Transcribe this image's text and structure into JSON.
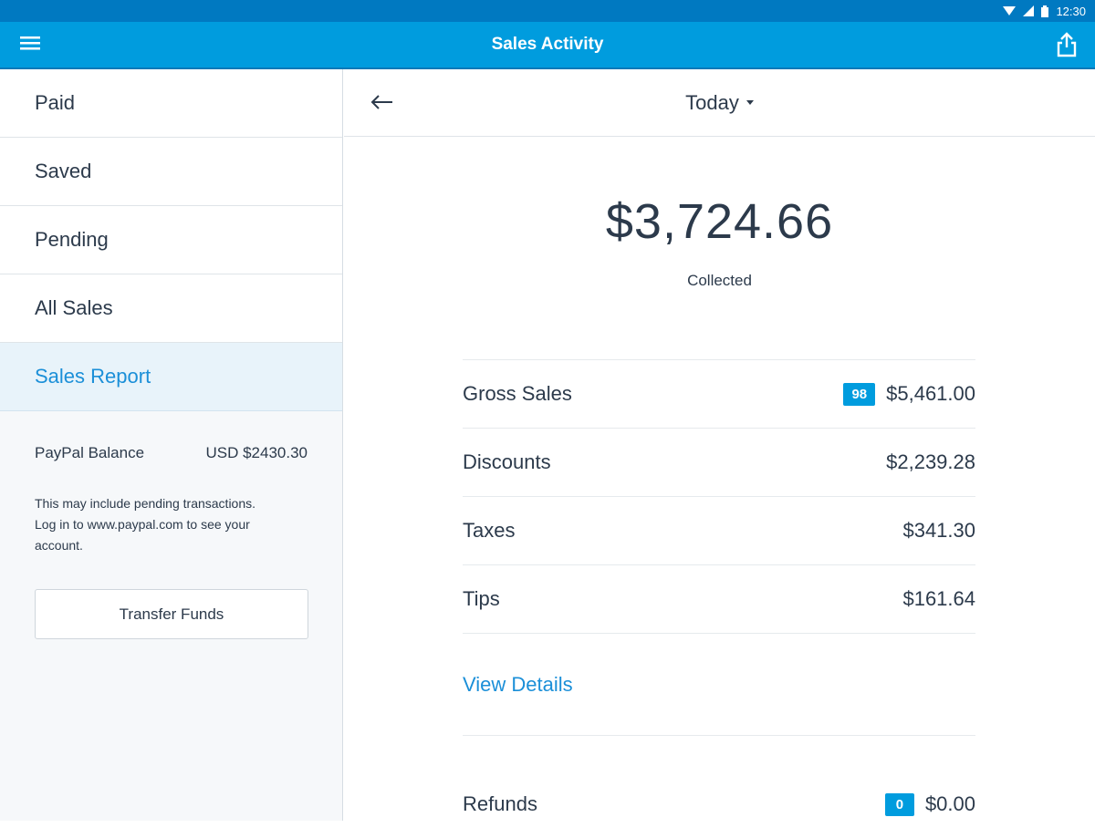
{
  "status_bar": {
    "time": "12:30"
  },
  "app_bar": {
    "title": "Sales Activity"
  },
  "sidebar": {
    "items": [
      {
        "label": "Paid"
      },
      {
        "label": "Saved"
      },
      {
        "label": "Pending"
      },
      {
        "label": "All Sales"
      },
      {
        "label": "Sales Report",
        "active": true
      }
    ],
    "balance_label": "PayPal Balance",
    "balance_value": "USD $2430.30",
    "note": "This may include pending transactions. Log in to www.paypal.com to see your account.",
    "transfer_button": "Transfer Funds"
  },
  "main": {
    "period": "Today",
    "collected_amount": "$3,724.66",
    "collected_label": "Collected",
    "rows": {
      "gross_sales": {
        "label": "Gross Sales",
        "count": "98",
        "value": "$5,461.00"
      },
      "discounts": {
        "label": "Discounts",
        "value": "$2,239.28"
      },
      "taxes": {
        "label": "Taxes",
        "value": "$341.30"
      },
      "tips": {
        "label": "Tips",
        "value": "$161.64"
      }
    },
    "view_details": "View Details",
    "refunds": {
      "label": "Refunds",
      "count": "0",
      "value": "$0.00"
    }
  },
  "colors": {
    "primary": "#009cde",
    "status_bar": "#0079c1",
    "link": "#1b8fd8",
    "active_bg": "#e8f3fa",
    "text": "#2c3a4b"
  }
}
